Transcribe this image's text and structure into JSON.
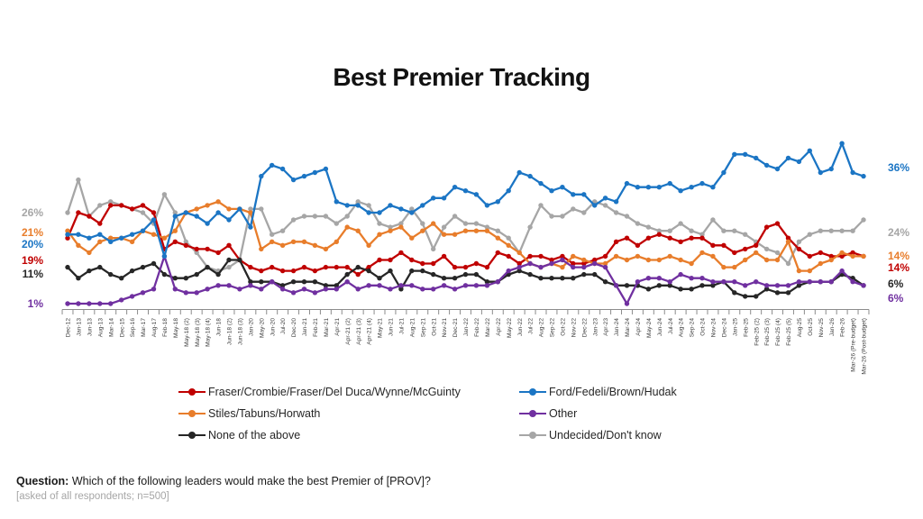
{
  "title": "Best Premier Tracking",
  "footer": {
    "question_label": "Question:",
    "question_text": " Which of the following leaders would make the best Premier of [PROV]?",
    "note": "[asked of all respondents; n=500]"
  },
  "value_labels": {
    "left": [
      {
        "text": "26%",
        "color": "#a6a6a6"
      },
      {
        "text": "21%",
        "color": "#e87d2b"
      },
      {
        "text": "20%",
        "color": "#1b75c4"
      },
      {
        "text": "19%",
        "color": "#c00000"
      },
      {
        "text": "11%",
        "color": "#262626"
      },
      {
        "text": "1%",
        "color": "#7030a0"
      }
    ],
    "right": [
      {
        "text": "36%",
        "color": "#1b75c4"
      },
      {
        "text": "24%",
        "color": "#a6a6a6"
      },
      {
        "text": "14%",
        "color": "#e87d2b"
      },
      {
        "text": "14%",
        "color": "#c00000"
      },
      {
        "text": "6%",
        "color": "#262626"
      },
      {
        "text": "6%",
        "color": "#7030a0"
      }
    ]
  },
  "chart_data": {
    "type": "line",
    "title": "Best Premier Tracking",
    "ylim": [
      0,
      50
    ],
    "grid": false,
    "legend_position": "bottom",
    "categories": [
      "Dec-12",
      "Jan-13",
      "Jun-13",
      "Aug-13",
      "Mar-14",
      "Dec-15",
      "Sep-16",
      "Mar-17",
      "Aug-17",
      "Feb-18",
      "May-18",
      "May-18 (2)",
      "May-18 (3)",
      "May-18 (4)",
      "Jun-18",
      "Jun-18 (2)",
      "Jun-18 (3)",
      "Jan-20",
      "May-20",
      "Jun-20",
      "Jul-20",
      "Dec-20",
      "Jan-21",
      "Feb-21",
      "Mar-21",
      "Apr-21",
      "Apr-21 (2)",
      "Apr-21 (3)",
      "Apr-21 (4)",
      "May-21",
      "Jun-21",
      "Jul-21",
      "Aug-21",
      "Sep-21",
      "Oct-21",
      "Nov-21",
      "Dec-21",
      "Jan-22",
      "Feb-22",
      "Mar-22",
      "Apr-22",
      "May-22",
      "Jun-22",
      "Jul-22",
      "Aug-22",
      "Sep-22",
      "Oct-22",
      "Nov-22",
      "Dec-22",
      "Jan-23",
      "Apr-23",
      "Jan-24",
      "Mar-24",
      "Apr-24",
      "May-24",
      "Jun-24",
      "Jul-24",
      "Aug-24",
      "Sep-24",
      "Oct-24",
      "Nov-24",
      "Dec-24",
      "Jan-25",
      "Feb-25",
      "Feb-25 (2)",
      "Feb-25 (3)",
      "Feb-25 (4)",
      "Feb-25 (5)",
      "Aug-25",
      "Oct-25",
      "Nov-25",
      "Jan-26",
      "Feb-26",
      "Mar-26 (Pre-budget)",
      "Mar-26 (Post-budget)"
    ],
    "series": [
      {
        "name": "Fraser/Crombie/Fraser/Del Duca/Wynne/McGuinty",
        "color": "#c00000",
        "values": [
          19,
          26,
          25,
          23,
          28,
          28,
          27,
          28,
          26,
          16,
          18,
          17,
          16,
          16,
          15,
          17,
          13,
          11,
          10,
          11,
          10,
          10,
          11,
          10,
          11,
          11,
          11,
          9,
          11,
          13,
          13,
          15,
          13,
          12,
          12,
          14,
          11,
          11,
          12,
          11,
          15,
          14,
          12,
          14,
          14,
          13,
          14,
          12,
          12,
          13,
          14,
          18,
          19,
          17,
          19,
          20,
          19,
          18,
          19,
          19,
          17,
          17,
          15,
          16,
          17,
          22,
          23,
          19,
          16,
          14,
          15,
          14,
          14,
          15,
          14
        ]
      },
      {
        "name": "Ford/Fedeli/Brown/Hudak",
        "color": "#1b75c4",
        "values": [
          20,
          20,
          19,
          20,
          18,
          19,
          20,
          21,
          24,
          14,
          25,
          26,
          25,
          23,
          26,
          24,
          27,
          22,
          36,
          39,
          38,
          35,
          36,
          37,
          38,
          29,
          28,
          28,
          26,
          26,
          28,
          27,
          26,
          28,
          30,
          30,
          33,
          32,
          31,
          28,
          29,
          32,
          37,
          36,
          34,
          32,
          33,
          31,
          31,
          28,
          30,
          29,
          34,
          33,
          33,
          33,
          34,
          32,
          33,
          34,
          33,
          37,
          42,
          42,
          41,
          39,
          38,
          41,
          40,
          43,
          37,
          38,
          45,
          37,
          36
        ]
      },
      {
        "name": "Stiles/Tabuns/Horwath",
        "color": "#e87d2b",
        "values": [
          21,
          17,
          15,
          18,
          19,
          19,
          18,
          21,
          20,
          19,
          21,
          26,
          27,
          28,
          29,
          27,
          27,
          26,
          16,
          18,
          17,
          18,
          18,
          17,
          16,
          18,
          22,
          21,
          17,
          20,
          21,
          22,
          19,
          21,
          23,
          20,
          20,
          21,
          21,
          21,
          19,
          17,
          15,
          12,
          11,
          12,
          11,
          14,
          13,
          12,
          12,
          14,
          13,
          14,
          13,
          13,
          14,
          13,
          12,
          15,
          14,
          11,
          11,
          13,
          15,
          13,
          13,
          18,
          10,
          10,
          12,
          13,
          15,
          14,
          14
        ]
      },
      {
        "name": "Other",
        "color": "#7030a0",
        "values": [
          1,
          1,
          1,
          1,
          1,
          2,
          3,
          4,
          5,
          14,
          5,
          4,
          4,
          5,
          6,
          6,
          5,
          6,
          5,
          7,
          5,
          4,
          5,
          4,
          5,
          5,
          7,
          5,
          6,
          6,
          5,
          6,
          6,
          5,
          5,
          6,
          5,
          6,
          6,
          6,
          7,
          10,
          11,
          12,
          11,
          12,
          13,
          11,
          11,
          12,
          11,
          6,
          1,
          7,
          8,
          8,
          7,
          9,
          8,
          8,
          7,
          7,
          7,
          6,
          7,
          6,
          6,
          6,
          7,
          7,
          7,
          7,
          10,
          7,
          6
        ]
      },
      {
        "name": "None of the above",
        "color": "#262626",
        "values": [
          11,
          8,
          10,
          11,
          9,
          8,
          10,
          11,
          12,
          9,
          8,
          8,
          9,
          11,
          9,
          13,
          13,
          7,
          7,
          7,
          6,
          7,
          7,
          7,
          6,
          6,
          9,
          11,
          10,
          8,
          10,
          5,
          10,
          10,
          9,
          8,
          8,
          9,
          9,
          7,
          7,
          9,
          10,
          9,
          8,
          8,
          8,
          8,
          9,
          9,
          7,
          6,
          6,
          6,
          5,
          6,
          6,
          5,
          5,
          6,
          6,
          7,
          4,
          3,
          3,
          5,
          4,
          4,
          6,
          7,
          7,
          7,
          9,
          8,
          6
        ]
      },
      {
        "name": "Undecided/Don't know",
        "color": "#a6a6a6",
        "values": [
          26,
          35,
          25,
          28,
          29,
          28,
          27,
          26,
          23,
          31,
          26,
          18,
          15,
          11,
          10,
          11,
          13,
          27,
          27,
          20,
          21,
          24,
          25,
          25,
          25,
          23,
          25,
          29,
          28,
          23,
          22,
          23,
          27,
          23,
          16,
          22,
          25,
          23,
          23,
          22,
          21,
          19,
          15,
          22,
          28,
          25,
          25,
          27,
          26,
          29,
          28,
          26,
          25,
          23,
          22,
          21,
          21,
          23,
          21,
          20,
          24,
          21,
          21,
          20,
          18,
          16,
          15,
          12,
          18,
          20,
          21,
          21,
          21,
          21,
          24
        ]
      }
    ]
  }
}
